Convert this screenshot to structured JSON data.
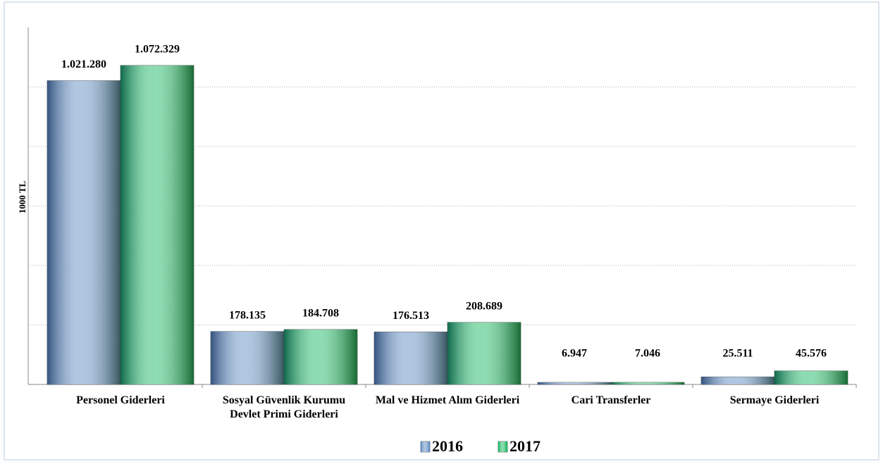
{
  "chart_data": {
    "type": "bar",
    "ylabel": "1000 TL",
    "categories": [
      "Personel Giderleri",
      "Sosyal Güvenlik Kurumu Devlet Primi Giderleri",
      "Mal ve Hizmet Alım Giderleri",
      "Cari Transferler",
      "Sermaye Giderleri"
    ],
    "series": [
      {
        "name": "2016",
        "color": "#4f81bd",
        "values": [
          1021280,
          178135,
          176513,
          6947,
          25511
        ],
        "value_labels": [
          "1.021.280",
          "178.135",
          "176.513",
          "6.947",
          "25.511"
        ]
      },
      {
        "name": "2017",
        "color": "#00b050",
        "values": [
          1072329,
          184708,
          208689,
          7046,
          45576
        ],
        "value_labels": [
          "1.072.329",
          "184.708",
          "208.689",
          "7.046",
          "45.576"
        ]
      }
    ],
    "ylim": [
      0,
      1200000
    ],
    "yticks": [
      0,
      200000,
      400000,
      600000,
      800000,
      1000000
    ],
    "grid": true,
    "legend": "bottom"
  }
}
